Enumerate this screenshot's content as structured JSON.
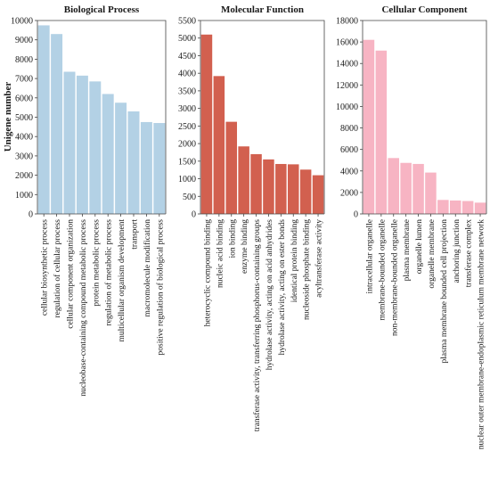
{
  "y_axis_label": "Unigene number",
  "chart_data": [
    {
      "type": "bar",
      "title": "Biological Process",
      "ylim": [
        0,
        10000
      ],
      "yticks": [
        0,
        1000,
        2000,
        3000,
        4000,
        5000,
        6000,
        7000,
        8000,
        9000,
        10000
      ],
      "categories": [
        "cellular biosynthetic process",
        "regulation of cellular process",
        "cellular component organization",
        "nucleobase-containing compound metabolic process",
        "protein metabolic process",
        "regulation of metabolic process",
        "multicellular organism development",
        "transport",
        "macromolecule modification",
        "positive regulation of biological process"
      ],
      "values": [
        9750,
        9300,
        7350,
        7150,
        6850,
        6200,
        5750,
        5300,
        4750,
        4700
      ],
      "color": "#b3d1e5"
    },
    {
      "type": "bar",
      "title": "Molecular Function",
      "ylim": [
        0,
        5500
      ],
      "yticks": [
        0,
        500,
        1000,
        1500,
        2000,
        2500,
        3000,
        3500,
        4000,
        4500,
        5000,
        5500
      ],
      "categories": [
        "heterocyclic compound binding",
        "nucleic acid binding",
        "ion binding",
        "enzyme binding",
        "transferase activity, transferring phosphorus-containing groups",
        "hydrolase activity, acting on acid anhydrides",
        "hydrolase activity, acting on ester bonds",
        "identical protein binding",
        "nucleoside phosphate binding",
        "acyltransferase activity"
      ],
      "values": [
        5100,
        3920,
        2620,
        1920,
        1700,
        1550,
        1420,
        1410,
        1260,
        1100
      ],
      "color": "#d2604f"
    },
    {
      "type": "bar",
      "title": "Cellular Component",
      "ylim": [
        0,
        18000
      ],
      "yticks": [
        0,
        2000,
        4000,
        6000,
        8000,
        10000,
        12000,
        14000,
        16000,
        18000
      ],
      "categories": [
        "intracellular organelle",
        "membrane-bounded organelle",
        "non-membrane-bounded organelle",
        "plasma membrane",
        "organelle lumen",
        "organelle membrane",
        "plasma membrane bounded cell projection",
        "anchoring junction",
        "transferase complex",
        "nuclear outer membrane-endoplasmic reticulum membrane network"
      ],
      "values": [
        16200,
        15200,
        5200,
        4750,
        4650,
        3850,
        1300,
        1250,
        1200,
        1050
      ],
      "color": "#f7b4c3"
    }
  ]
}
